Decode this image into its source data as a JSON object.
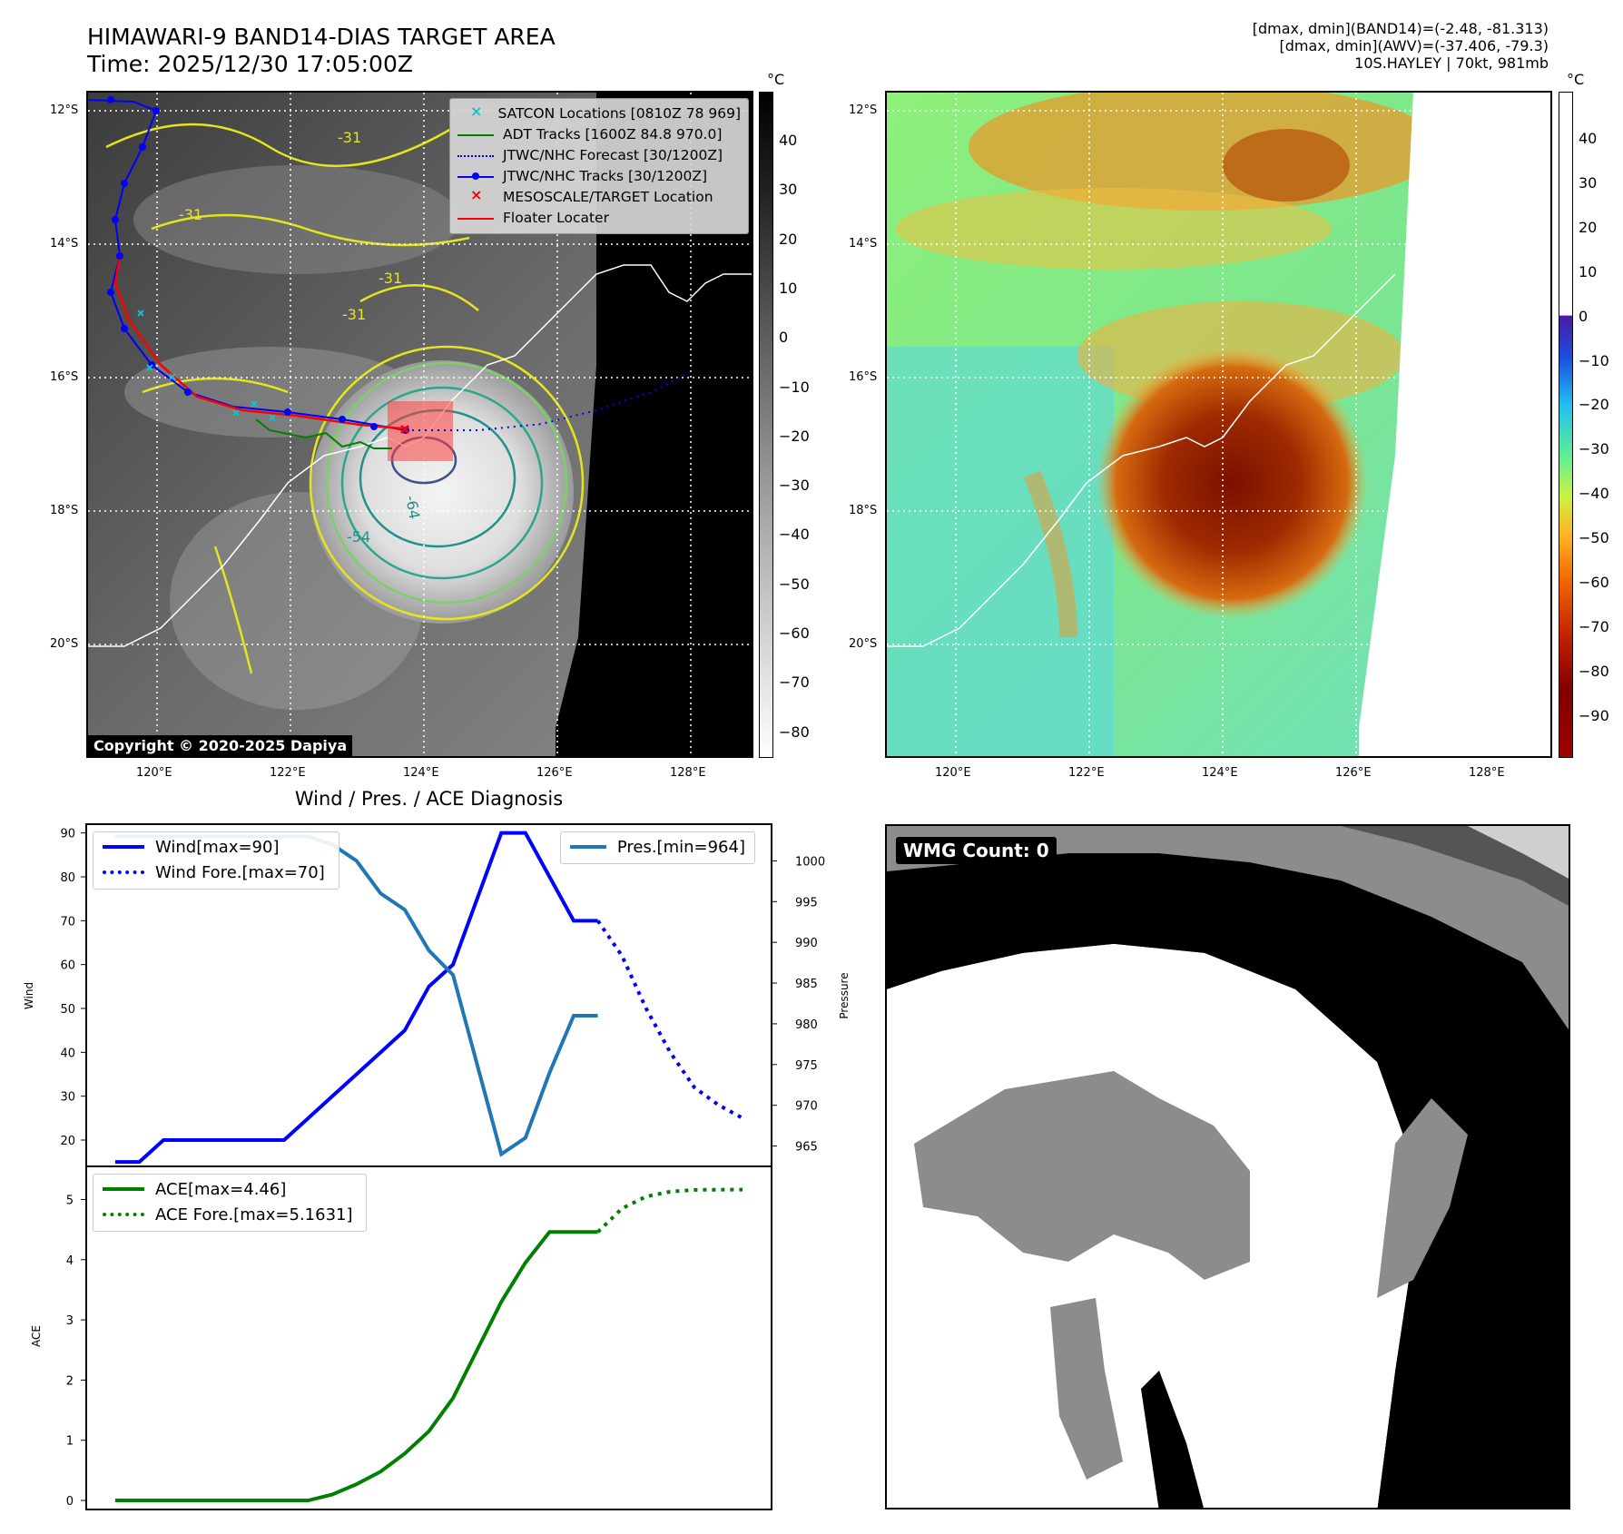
{
  "header": {
    "title_line1": "HIMAWARI-9 BAND14-DIAS TARGET AREA",
    "title_line2": "Time: 2025/12/30 17:05:00Z",
    "meta_line1": "[dmax, dmin](BAND14)=(-2.48, -81.313)",
    "meta_line2": "[dmax, dmin](AWV)=(-37.406, -79.3)",
    "meta_line3": "10S.HAYLEY | 70kt, 981mb"
  },
  "map_left": {
    "lat_labels": [
      "12°S",
      "14°S",
      "16°S",
      "18°S",
      "20°S"
    ],
    "lon_labels": [
      "120°E",
      "122°E",
      "124°E",
      "126°E",
      "128°E"
    ],
    "copyright": "Copyright © 2020-2025 Dapiya",
    "contour_labels": [
      "-31",
      "-31",
      "-31",
      "-31",
      "-64",
      "-54"
    ],
    "legend": [
      {
        "label": "SATCON Locations [0810Z 78 969]",
        "color": "#17becf",
        "marker": "x"
      },
      {
        "label": "ADT Tracks [1600Z 84.8 970.0]",
        "color": "#008000",
        "marker": "line"
      },
      {
        "label": "JTWC/NHC Forecast [30/1200Z]",
        "color": "#0000ff",
        "marker": "dotted"
      },
      {
        "label": "JTWC/NHC Tracks [30/1200Z]",
        "color": "#0000ff",
        "marker": "line-dot"
      },
      {
        "label": "MESOSCALE/TARGET Location",
        "color": "#ff0000",
        "marker": "x"
      },
      {
        "label": "Floater Locater",
        "color": "#ff0000",
        "marker": "line"
      }
    ],
    "colorbar_unit": "°C",
    "colorbar_ticks": [
      "40",
      "30",
      "20",
      "10",
      "0",
      "−10",
      "−20",
      "−30",
      "−40",
      "−50",
      "−60",
      "−70",
      "−80"
    ]
  },
  "map_right": {
    "lat_labels": [
      "12°S",
      "14°S",
      "16°S",
      "18°S",
      "20°S"
    ],
    "lon_labels": [
      "120°E",
      "122°E",
      "124°E",
      "126°E",
      "128°E"
    ],
    "colorbar_unit": "°C",
    "colorbar_ticks": [
      "40",
      "30",
      "20",
      "10",
      "0",
      "−10",
      "−20",
      "−30",
      "−40",
      "−50",
      "−60",
      "−70",
      "−80",
      "−90"
    ]
  },
  "wmg": {
    "badge": "WMG Count: 0"
  },
  "chart_data": [
    {
      "type": "line",
      "title": "Wind / Pres. / ACE Diagnosis",
      "ylabel": "Wind",
      "ylabel_right": "Pressure",
      "ylim": [
        14,
        92
      ],
      "ylim_right": [
        962.5,
        1004.5
      ],
      "yticks": [
        20,
        30,
        40,
        50,
        60,
        70,
        80,
        90
      ],
      "yticks_right": [
        965,
        970,
        975,
        980,
        985,
        990,
        995,
        1000
      ],
      "x": [
        0,
        1,
        2,
        3,
        4,
        5,
        6,
        7,
        8,
        9,
        10,
        11,
        12,
        13,
        14,
        15,
        16,
        17,
        18,
        19,
        20,
        21,
        22,
        23,
        24,
        25,
        26
      ],
      "series": [
        {
          "name": "Wind[max=90]",
          "color": "#0000ff",
          "style": "solid",
          "x": [
            0,
            1,
            2,
            3,
            4,
            5,
            6,
            7,
            8,
            9,
            10,
            11,
            12,
            13,
            14,
            15,
            16,
            17,
            18,
            19,
            20
          ],
          "values": [
            15,
            15,
            20,
            20,
            20,
            20,
            20,
            20,
            25,
            30,
            35,
            40,
            45,
            55,
            60,
            75,
            90,
            90,
            80,
            70,
            70
          ]
        },
        {
          "name": "Wind Fore.[max=70]",
          "color": "#0000ff",
          "style": "dotted",
          "x": [
            20,
            21,
            22,
            23,
            24,
            25,
            26
          ],
          "values": [
            70,
            62,
            50,
            40,
            32,
            28,
            25
          ]
        },
        {
          "name": "Pres.[min=964]",
          "color": "#1f77b4",
          "style": "solid",
          "axis": "right",
          "x": [
            0,
            1,
            2,
            3,
            4,
            5,
            6,
            7,
            8,
            9,
            10,
            11,
            12,
            13,
            14,
            15,
            16,
            17,
            18,
            19,
            20
          ],
          "values": [
            1003,
            1003,
            1003,
            1003,
            1003,
            1003,
            1003,
            1003,
            1003,
            1002,
            1000,
            996,
            994,
            989,
            986,
            975,
            964,
            966,
            974,
            981,
            981
          ]
        }
      ]
    },
    {
      "type": "line",
      "ylabel": "ACE",
      "ylim": [
        -0.15,
        5.55
      ],
      "yticks": [
        0,
        1,
        2,
        3,
        4,
        5
      ],
      "series": [
        {
          "name": "ACE[max=4.46]",
          "color": "#008000",
          "style": "solid",
          "x": [
            0,
            1,
            2,
            3,
            4,
            5,
            6,
            7,
            8,
            9,
            10,
            11,
            12,
            13,
            14,
            15,
            16,
            17,
            18,
            19,
            20
          ],
          "values": [
            0,
            0,
            0,
            0,
            0,
            0,
            0,
            0,
            0,
            0.1,
            0.27,
            0.48,
            0.78,
            1.15,
            1.7,
            2.5,
            3.3,
            3.95,
            4.46,
            4.46,
            4.46
          ]
        },
        {
          "name": "ACE Fore.[max=5.1631]",
          "color": "#008000",
          "style": "dotted",
          "x": [
            20,
            21,
            22,
            23,
            24,
            25,
            26
          ],
          "values": [
            4.46,
            4.85,
            5.05,
            5.13,
            5.16,
            5.163,
            5.1631
          ]
        }
      ]
    }
  ]
}
